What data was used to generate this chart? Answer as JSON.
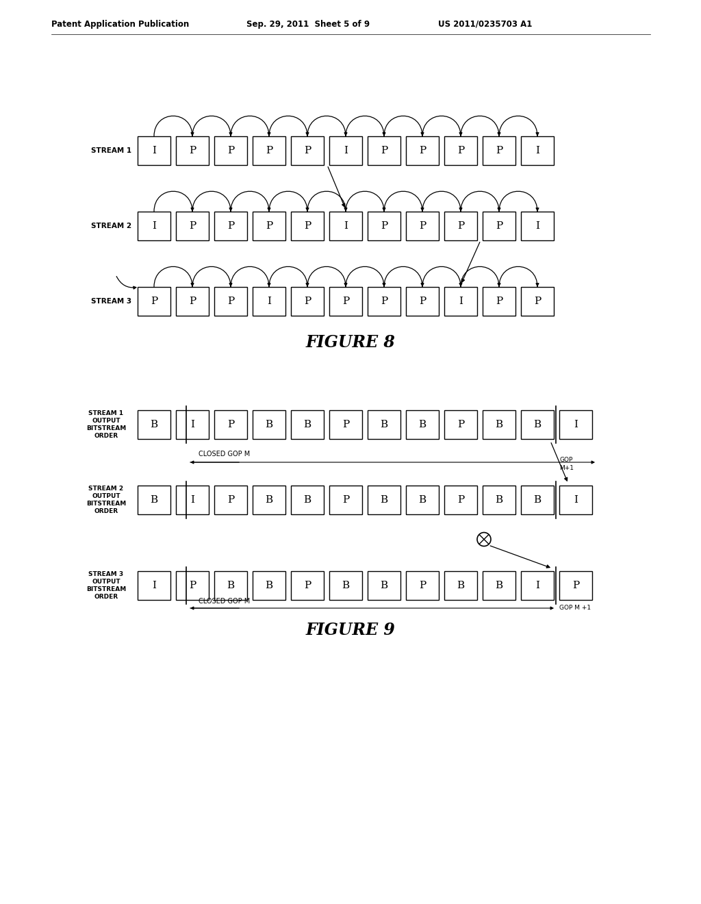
{
  "header_left": "Patent Application Publication",
  "header_mid": "Sep. 29, 2011  Sheet 5 of 9",
  "header_right": "US 2011/0235703 A1",
  "fig8_title": "FIGURE 8",
  "fig9_title": "FIGURE 9",
  "stream1_label": "STREAM 1",
  "stream2_label": "STREAM 2",
  "stream3_label": "STREAM 3",
  "fig8_stream1": [
    "I",
    "P",
    "P",
    "P",
    "P",
    "I",
    "P",
    "P",
    "P",
    "P",
    "I"
  ],
  "fig8_stream2": [
    "I",
    "P",
    "P",
    "P",
    "P",
    "I",
    "P",
    "P",
    "P",
    "P",
    "I"
  ],
  "fig8_stream3": [
    "P",
    "P",
    "P",
    "I",
    "P",
    "P",
    "P",
    "P",
    "I",
    "P",
    "P"
  ],
  "fig9_stream1_label": "STREAM 1\nOUTPUT\nBITSTREAM\nORDER",
  "fig9_stream2_label": "STREAM 2\nOUTPUT\nBITSTREAM\nORDER",
  "fig9_stream3_label": "STREAM 3\nOUTPUT\nBITSTREAM\nORDER",
  "fig9_stream1": [
    "B",
    "I",
    "P",
    "B",
    "B",
    "P",
    "B",
    "B",
    "P",
    "B",
    "B",
    "I"
  ],
  "fig9_stream2": [
    "B",
    "I",
    "P",
    "B",
    "B",
    "P",
    "B",
    "B",
    "P",
    "B",
    "B",
    "I"
  ],
  "fig9_stream3": [
    "I",
    "P",
    "B",
    "B",
    "P",
    "B",
    "B",
    "P",
    "B",
    "B",
    "I",
    "P"
  ],
  "bg_color": "#ffffff"
}
